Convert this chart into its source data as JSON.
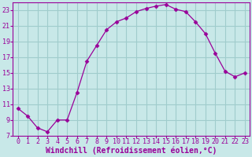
{
  "x": [
    0,
    1,
    2,
    3,
    4,
    5,
    6,
    7,
    8,
    9,
    10,
    11,
    12,
    13,
    14,
    15,
    16,
    17,
    18,
    19,
    20,
    21,
    22,
    23
  ],
  "y": [
    10.5,
    9.5,
    8.0,
    7.5,
    9.0,
    9.0,
    12.5,
    16.5,
    18.5,
    20.5,
    21.5,
    22.0,
    22.8,
    23.2,
    23.5,
    23.7,
    23.1,
    22.8,
    21.5,
    20.0,
    17.5,
    15.2,
    14.5,
    15.0
  ],
  "line_color": "#990099",
  "marker": "D",
  "marker_size": 2.5,
  "background_color": "#c8e8e8",
  "grid_color": "#a0cccc",
  "xlabel": "Windchill (Refroidissement éolien,°C)",
  "xlabel_color": "#990099",
  "tick_color": "#990099",
  "xlim": [
    -0.5,
    23.5
  ],
  "ylim": [
    7,
    24
  ],
  "yticks": [
    7,
    9,
    11,
    13,
    15,
    17,
    19,
    21,
    23
  ],
  "xticks": [
    0,
    1,
    2,
    3,
    4,
    5,
    6,
    7,
    8,
    9,
    10,
    11,
    12,
    13,
    14,
    15,
    16,
    17,
    18,
    19,
    20,
    21,
    22,
    23
  ],
  "spine_color": "#990099",
  "tick_fontsize": 6,
  "xlabel_fontsize": 7
}
